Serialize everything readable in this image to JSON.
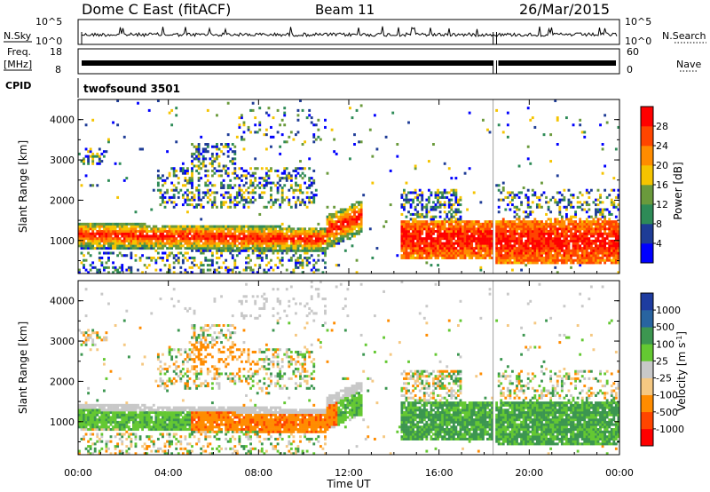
{
  "header": {
    "station": "Dome C East (fitACF)",
    "beam": "Beam 11",
    "date": "26/Mar/2015"
  },
  "strips": {
    "nsky_label": "N.Sky",
    "nsky_ticks": [
      "10^5",
      "10^0"
    ],
    "nsearch_label": "N.Search",
    "nsearch_ticks": [
      "10^5",
      "10^0"
    ],
    "freq_label_1": "Freq.",
    "freq_label_2": "[MHz]",
    "freq_ticks": [
      "18",
      "8"
    ],
    "nave_label": "Nave",
    "nave_ticks": [
      "60",
      "0"
    ],
    "cpid_label": "CPID",
    "cpid_value": "twofsound 3501"
  },
  "colors": {
    "power": [
      "#0000ff",
      "#1e3c96",
      "#2e8b57",
      "#6a9a3c",
      "#f5c400",
      "#ff8c00",
      "#ff4500",
      "#ff0000"
    ],
    "velocity": [
      "#ff0000",
      "#ff4500",
      "#ff8c00",
      "#f5c882",
      "#c8c8c8",
      "#64c832",
      "#3c9650",
      "#2864a0",
      "#1e3ca0"
    ]
  },
  "chart_data": [
    {
      "type": "heatmap",
      "name": "power",
      "xlabel": "Time UT",
      "ylabel": "Slant Range [km]",
      "xlim": [
        0,
        24
      ],
      "ylim": [
        180,
        4500
      ],
      "x_tick_labels": [
        "00:00",
        "04:00",
        "08:00",
        "12:00",
        "16:00",
        "20:00",
        "00:00"
      ],
      "y_ticks": [
        1000,
        2000,
        3000,
        4000
      ],
      "y_tick_labels": [
        "1000",
        "2000",
        "3000",
        "4000"
      ],
      "colorbar_label": "Power [dB]",
      "colorbar_ticks": [
        "4",
        "8",
        "12",
        "16",
        "20",
        "24",
        "28"
      ],
      "colorbar_range": [
        0,
        32
      ],
      "data_gap_hours": [
        18.4,
        18.55
      ]
    },
    {
      "type": "heatmap",
      "name": "velocity",
      "xlabel": "Time UT",
      "ylabel": "Slant Range [km]",
      "xlim": [
        0,
        24
      ],
      "ylim": [
        180,
        4500
      ],
      "x_tick_labels": [
        "00:00",
        "04:00",
        "08:00",
        "12:00",
        "16:00",
        "20:00",
        "00:00"
      ],
      "y_ticks": [
        1000,
        2000,
        3000,
        4000
      ],
      "y_tick_labels": [
        "1000",
        "2000",
        "3000",
        "4000"
      ],
      "colorbar_label": "Velocity [m s",
      "colorbar_label_sup": "-1",
      "colorbar_label_end": "]",
      "colorbar_ticks": [
        "-1000",
        "-500",
        "-100",
        "-25",
        "25",
        "100",
        "500",
        "1000"
      ],
      "data_gap_hours": [
        18.4,
        18.55
      ]
    }
  ]
}
